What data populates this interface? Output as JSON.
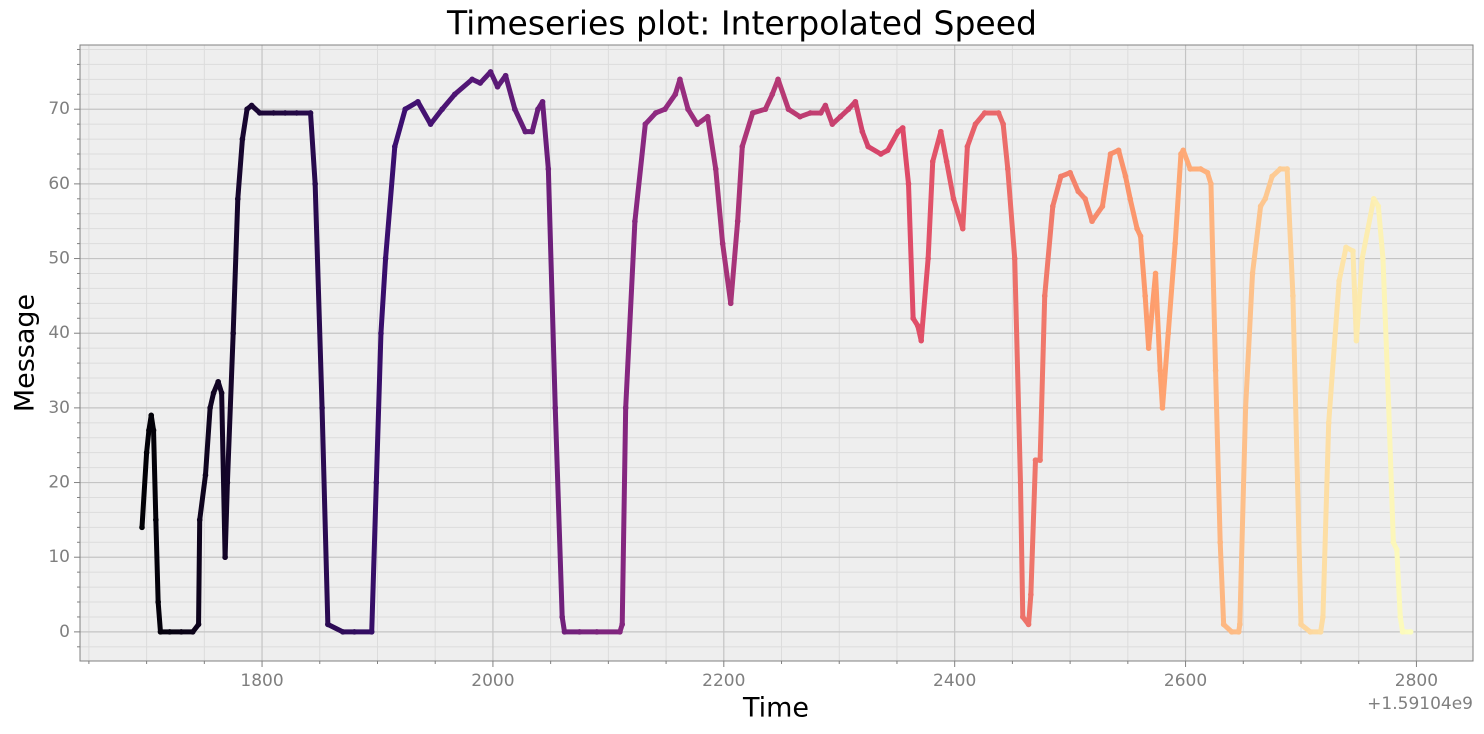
{
  "chart_data": {
    "type": "scatter",
    "title": "Timeseries plot: Interpolated Speed",
    "x_label": "Time",
    "y_label": "Message",
    "x_offset_label": "+1.59104e9",
    "colormap": [
      "#000004",
      "#3b0f70",
      "#8c2981",
      "#de4968",
      "#fe9f6d",
      "#fcfdbf"
    ],
    "grid": true,
    "minor_grid": true,
    "xlim": [
      1642.3,
      2849
    ],
    "ylim": [
      -3.9,
      78.6
    ],
    "xticks": [
      1800,
      2000,
      2200,
      2400,
      2600,
      2800
    ],
    "yticks": [
      0,
      10,
      20,
      30,
      40,
      50,
      60,
      70
    ],
    "xminorticks": [
      1650,
      1700,
      1750,
      1850,
      1900,
      1950,
      2050,
      2100,
      2150,
      2250,
      2300,
      2350,
      2450,
      2500,
      2550,
      2650,
      2700,
      2750
    ],
    "yminorticks": [
      -2,
      2,
      4,
      6,
      8,
      12,
      14,
      16,
      18,
      22,
      24,
      26,
      28,
      32,
      34,
      36,
      38,
      42,
      44,
      46,
      48,
      52,
      54,
      56,
      58,
      62,
      64,
      66,
      68,
      72,
      74,
      76,
      78
    ],
    "x": [
      1696,
      1700,
      1702,
      1704,
      1706,
      1708,
      1710,
      1712,
      1720,
      1730,
      1740,
      1745,
      1746,
      1751,
      1755,
      1758,
      1762,
      1765,
      1768,
      1770,
      1775,
      1779,
      1783,
      1787,
      1791,
      1798,
      1810,
      1820,
      1830,
      1842,
      1846,
      1852,
      1857,
      1870,
      1880,
      1895,
      1899,
      1903,
      1907,
      1915,
      1924,
      1935,
      1946,
      1956,
      1967,
      1982,
      1989,
      1998,
      2004,
      2011,
      2019,
      2028,
      2034,
      2039,
      2043,
      2048,
      2054,
      2060,
      2062,
      2075,
      2090,
      2110,
      2112,
      2115,
      2123,
      2132,
      2141,
      2149,
      2158,
      2162,
      2169,
      2177,
      2186,
      2193,
      2199,
      2206,
      2212,
      2216,
      2225,
      2236,
      2242,
      2247,
      2256,
      2266,
      2275,
      2284,
      2288,
      2294,
      2301,
      2308,
      2314,
      2320,
      2325,
      2336,
      2342,
      2351,
      2355,
      2360,
      2364,
      2368,
      2371,
      2377,
      2381,
      2388,
      2393,
      2399,
      2407,
      2411,
      2418,
      2426,
      2438,
      2442,
      2446,
      2452,
      2457,
      2459,
      2464,
      2466,
      2470,
      2474,
      2478,
      2485,
      2492,
      2500,
      2507,
      2513,
      2519,
      2528,
      2535,
      2542,
      2548,
      2552,
      2558,
      2561,
      2565,
      2568,
      2574,
      2578,
      2580,
      2585,
      2591,
      2596,
      2598,
      2604,
      2613,
      2619,
      2622,
      2626,
      2630,
      2633,
      2640,
      2646,
      2647,
      2652,
      2658,
      2665,
      2669,
      2675,
      2682,
      2688,
      2693,
      2697,
      2700,
      2708,
      2717,
      2719,
      2724,
      2733,
      2739,
      2745,
      2748,
      2753,
      2763,
      2767,
      2771,
      2776,
      2780,
      2783,
      2786,
      2788,
      2795
    ],
    "values": [
      14,
      24,
      27,
      29,
      27,
      15,
      4,
      0,
      0,
      0,
      0,
      1,
      15,
      21,
      30,
      32,
      33.5,
      32,
      10,
      20,
      40,
      58,
      66,
      70,
      70.5,
      69.5,
      69.5,
      69.5,
      69.5,
      69.5,
      60,
      30,
      1,
      0,
      0,
      0,
      20,
      40,
      50,
      65,
      70,
      71,
      68,
      70,
      72,
      74,
      73.5,
      75,
      73,
      74.5,
      70,
      67,
      67,
      70,
      71,
      62,
      30,
      2,
      0,
      0,
      0,
      0,
      1,
      30,
      55,
      68,
      69.5,
      70,
      72,
      74,
      70,
      68,
      69,
      62,
      52,
      44,
      55,
      65,
      69.5,
      70,
      72,
      74,
      70,
      69,
      69.5,
      69.5,
      70.5,
      68,
      69,
      70,
      71,
      67,
      65,
      64,
      64.5,
      67,
      67.5,
      60,
      42,
      41,
      39,
      50,
      63,
      67,
      63,
      58,
      54,
      65,
      68,
      69.5,
      69.5,
      68,
      62,
      50,
      20,
      2,
      1,
      5,
      23,
      23,
      45,
      57,
      61,
      61.5,
      59,
      58,
      55,
      57,
      64,
      64.5,
      61,
      58,
      54,
      53,
      45,
      38,
      48,
      35,
      30,
      40,
      52,
      64,
      64.5,
      62,
      62,
      61.5,
      60,
      35,
      12,
      1,
      0,
      0,
      1,
      30,
      48,
      57,
      58,
      61,
      62,
      62,
      45,
      20,
      1,
      0,
      0,
      2,
      28,
      47,
      51.5,
      51,
      39,
      50,
      58,
      57,
      50,
      30,
      12,
      11,
      2,
      0,
      0
    ]
  }
}
